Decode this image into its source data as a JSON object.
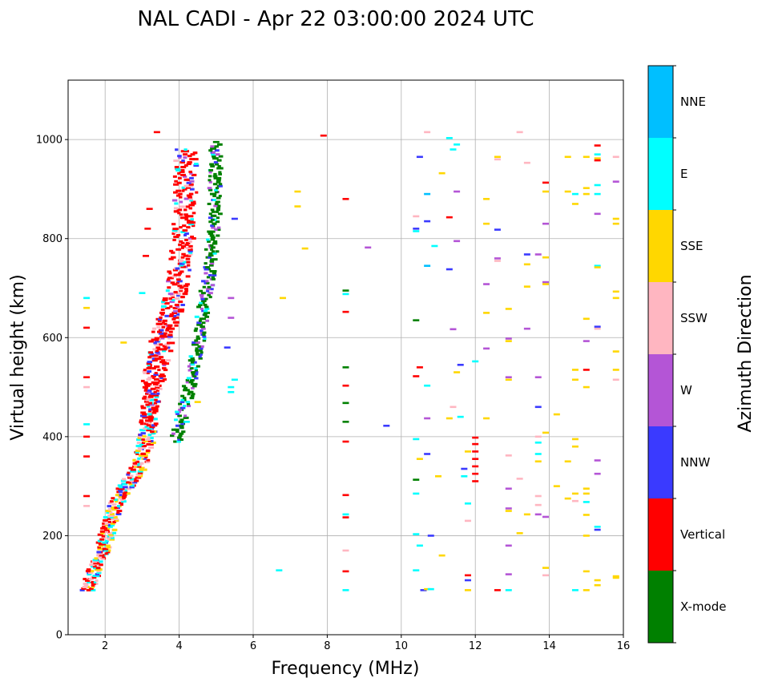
{
  "chart_data": {
    "type": "scatter",
    "title": "NAL CADI - Apr 22 03:00:00 2024 UTC",
    "xlabel": "Frequency (MHz)",
    "ylabel": "Virtual height (km)",
    "xlim": [
      1,
      16
    ],
    "ylim": [
      0,
      1120
    ],
    "xticks": [
      2,
      4,
      6,
      8,
      10,
      12,
      14,
      16
    ],
    "yticks": [
      0,
      200,
      400,
      600,
      800,
      1000
    ],
    "grid": true,
    "colorbar": {
      "title": "Azimuth Direction",
      "categories": [
        {
          "name": "X-mode",
          "color": "#008000"
        },
        {
          "name": "Vertical",
          "color": "#ff0000"
        },
        {
          "name": "NNW",
          "color": "#3a3aff"
        },
        {
          "name": "W",
          "color": "#b455d6"
        },
        {
          "name": "SSW",
          "color": "#ffb6c1"
        },
        {
          "name": "SSE",
          "color": "#ffd700"
        },
        {
          "name": "E",
          "color": "#00ffff"
        },
        {
          "name": "NNE",
          "color": "#00bfff"
        }
      ]
    },
    "dense_trace": {
      "description": "main ionogram trace",
      "mix": [
        "Vertical",
        "SSW",
        "E",
        "SSE",
        "NNW"
      ],
      "path": [
        [
          1.5,
          90
        ],
        [
          1.7,
          125
        ],
        [
          1.9,
          165
        ],
        [
          2.1,
          215
        ],
        [
          2.3,
          265
        ],
        [
          2.6,
          305
        ],
        [
          2.9,
          335
        ],
        [
          3.1,
          380
        ],
        [
          3.2,
          450
        ],
        [
          3.35,
          530
        ],
        [
          3.55,
          600
        ],
        [
          3.8,
          660
        ],
        [
          4.0,
          720
        ],
        [
          4.15,
          830
        ],
        [
          4.2,
          980
        ]
      ]
    },
    "x_mode_trace": {
      "description": "x-mode trace",
      "path": [
        [
          3.9,
          390
        ],
        [
          4.2,
          480
        ],
        [
          4.5,
          580
        ],
        [
          4.75,
          700
        ],
        [
          4.95,
          820
        ],
        [
          5.0,
          990
        ]
      ]
    },
    "points": [
      {
        "f": 1.5,
        "h": 680,
        "dir": "E"
      },
      {
        "f": 1.5,
        "h": 660,
        "dir": "SSE"
      },
      {
        "f": 1.5,
        "h": 620,
        "dir": "Vertical"
      },
      {
        "f": 1.5,
        "h": 520,
        "dir": "Vertical"
      },
      {
        "f": 1.5,
        "h": 500,
        "dir": "SSW"
      },
      {
        "f": 1.5,
        "h": 425,
        "dir": "E"
      },
      {
        "f": 1.5,
        "h": 400,
        "dir": "Vertical"
      },
      {
        "f": 1.5,
        "h": 360,
        "dir": "Vertical"
      },
      {
        "f": 1.5,
        "h": 280,
        "dir": "Vertical"
      },
      {
        "f": 1.5,
        "h": 260,
        "dir": "SSW"
      },
      {
        "f": 3.4,
        "h": 1015,
        "dir": "Vertical"
      },
      {
        "f": 3.2,
        "h": 860,
        "dir": "Vertical"
      },
      {
        "f": 3.15,
        "h": 820,
        "dir": "Vertical"
      },
      {
        "f": 3.1,
        "h": 765,
        "dir": "Vertical"
      },
      {
        "f": 3.0,
        "h": 690,
        "dir": "E"
      },
      {
        "f": 2.5,
        "h": 590,
        "dir": "SSE"
      },
      {
        "f": 5.0,
        "h": 995,
        "dir": "X-mode"
      },
      {
        "f": 5.5,
        "h": 840,
        "dir": "NNW"
      },
      {
        "f": 5.4,
        "h": 680,
        "dir": "W"
      },
      {
        "f": 5.4,
        "h": 640,
        "dir": "W"
      },
      {
        "f": 5.3,
        "h": 580,
        "dir": "NNW"
      },
      {
        "f": 5.5,
        "h": 515,
        "dir": "E"
      },
      {
        "f": 5.4,
        "h": 500,
        "dir": "E"
      },
      {
        "f": 5.4,
        "h": 490,
        "dir": "E"
      },
      {
        "f": 4.2,
        "h": 430,
        "dir": "E"
      },
      {
        "f": 4.5,
        "h": 470,
        "dir": "SSE"
      },
      {
        "f": 6.7,
        "h": 130,
        "dir": "E"
      },
      {
        "f": 6.8,
        "h": 680,
        "dir": "SSE"
      },
      {
        "f": 7.2,
        "h": 895,
        "dir": "SSE"
      },
      {
        "f": 7.2,
        "h": 865,
        "dir": "SSE"
      },
      {
        "f": 7.4,
        "h": 780,
        "dir": "SSE"
      },
      {
        "f": 7.9,
        "h": 1008,
        "dir": "Vertical"
      },
      {
        "f": 8.5,
        "h": 880,
        "dir": "Vertical"
      },
      {
        "f": 8.5,
        "h": 695,
        "dir": "X-mode"
      },
      {
        "f": 8.5,
        "h": 688,
        "dir": "E"
      },
      {
        "f": 8.5,
        "h": 652,
        "dir": "Vertical"
      },
      {
        "f": 8.5,
        "h": 540,
        "dir": "X-mode"
      },
      {
        "f": 8.5,
        "h": 503,
        "dir": "Vertical"
      },
      {
        "f": 8.5,
        "h": 468,
        "dir": "X-mode"
      },
      {
        "f": 8.5,
        "h": 430,
        "dir": "X-mode"
      },
      {
        "f": 8.5,
        "h": 390,
        "dir": "Vertical"
      },
      {
        "f": 8.5,
        "h": 282,
        "dir": "Vertical"
      },
      {
        "f": 8.5,
        "h": 243,
        "dir": "E"
      },
      {
        "f": 8.5,
        "h": 237,
        "dir": "Vertical"
      },
      {
        "f": 8.5,
        "h": 170,
        "dir": "SSW"
      },
      {
        "f": 8.5,
        "h": 128,
        "dir": "Vertical"
      },
      {
        "f": 8.5,
        "h": 90,
        "dir": "E"
      },
      {
        "f": 9.1,
        "h": 782,
        "dir": "W"
      },
      {
        "f": 9.6,
        "h": 422,
        "dir": "NNW"
      },
      {
        "f": 10.4,
        "h": 820,
        "dir": "NNW"
      },
      {
        "f": 10.4,
        "h": 815,
        "dir": "E"
      },
      {
        "f": 10.4,
        "h": 845,
        "dir": "SSW"
      },
      {
        "f": 10.4,
        "h": 635,
        "dir": "X-mode"
      },
      {
        "f": 10.4,
        "h": 522,
        "dir": "Vertical"
      },
      {
        "f": 10.4,
        "h": 395,
        "dir": "E"
      },
      {
        "f": 10.4,
        "h": 313,
        "dir": "X-mode"
      },
      {
        "f": 10.4,
        "h": 285,
        "dir": "E"
      },
      {
        "f": 10.4,
        "h": 203,
        "dir": "E"
      },
      {
        "f": 10.4,
        "h": 130,
        "dir": "E"
      },
      {
        "f": 10.5,
        "h": 965,
        "dir": "NNW"
      },
      {
        "f": 10.5,
        "h": 540,
        "dir": "Vertical"
      },
      {
        "f": 10.5,
        "h": 355,
        "dir": "SSE"
      },
      {
        "f": 10.5,
        "h": 180,
        "dir": "E"
      },
      {
        "f": 10.6,
        "h": 90,
        "dir": "NNW"
      },
      {
        "f": 10.7,
        "h": 1015,
        "dir": "SSW"
      },
      {
        "f": 10.7,
        "h": 890,
        "dir": "NNE"
      },
      {
        "f": 10.7,
        "h": 835,
        "dir": "NNW"
      },
      {
        "f": 10.7,
        "h": 745,
        "dir": "NNE"
      },
      {
        "f": 10.7,
        "h": 503,
        "dir": "E"
      },
      {
        "f": 10.7,
        "h": 437,
        "dir": "W"
      },
      {
        "f": 10.7,
        "h": 365,
        "dir": "NNW"
      },
      {
        "f": 10.7,
        "h": 92,
        "dir": "SSE"
      },
      {
        "f": 10.8,
        "h": 200,
        "dir": "NNW"
      },
      {
        "f": 10.8,
        "h": 92,
        "dir": "E"
      },
      {
        "f": 10.9,
        "h": 785,
        "dir": "E"
      },
      {
        "f": 11.0,
        "h": 320,
        "dir": "SSE"
      },
      {
        "f": 11.1,
        "h": 932,
        "dir": "SSE"
      },
      {
        "f": 11.1,
        "h": 160,
        "dir": "SSE"
      },
      {
        "f": 11.3,
        "h": 1003,
        "dir": "E"
      },
      {
        "f": 11.3,
        "h": 843,
        "dir": "Vertical"
      },
      {
        "f": 11.3,
        "h": 738,
        "dir": "NNW"
      },
      {
        "f": 11.3,
        "h": 437,
        "dir": "SSE"
      },
      {
        "f": 11.4,
        "h": 980,
        "dir": "E"
      },
      {
        "f": 11.4,
        "h": 617,
        "dir": "W"
      },
      {
        "f": 11.4,
        "h": 460,
        "dir": "SSW"
      },
      {
        "f": 11.5,
        "h": 990,
        "dir": "E"
      },
      {
        "f": 11.5,
        "h": 895,
        "dir": "W"
      },
      {
        "f": 11.5,
        "h": 795,
        "dir": "W"
      },
      {
        "f": 11.5,
        "h": 530,
        "dir": "SSE"
      },
      {
        "f": 11.6,
        "h": 545,
        "dir": "NNW"
      },
      {
        "f": 11.6,
        "h": 440,
        "dir": "E"
      },
      {
        "f": 11.7,
        "h": 335,
        "dir": "NNW"
      },
      {
        "f": 11.7,
        "h": 320,
        "dir": "E"
      },
      {
        "f": 11.8,
        "h": 370,
        "dir": "SSE"
      },
      {
        "f": 11.8,
        "h": 265,
        "dir": "E"
      },
      {
        "f": 11.8,
        "h": 230,
        "dir": "SSW"
      },
      {
        "f": 11.8,
        "h": 120,
        "dir": "Vertical"
      },
      {
        "f": 11.8,
        "h": 110,
        "dir": "NNW"
      },
      {
        "f": 11.8,
        "h": 90,
        "dir": "SSE"
      },
      {
        "f": 12.0,
        "h": 552,
        "dir": "E"
      },
      {
        "f": 12.0,
        "h": 398,
        "dir": "Vertical"
      },
      {
        "f": 12.0,
        "h": 385,
        "dir": "Vertical"
      },
      {
        "f": 12.0,
        "h": 370,
        "dir": "Vertical"
      },
      {
        "f": 12.0,
        "h": 355,
        "dir": "Vertical"
      },
      {
        "f": 12.0,
        "h": 340,
        "dir": "Vertical"
      },
      {
        "f": 12.0,
        "h": 325,
        "dir": "Vertical"
      },
      {
        "f": 12.0,
        "h": 310,
        "dir": "Vertical"
      },
      {
        "f": 12.3,
        "h": 880,
        "dir": "SSE"
      },
      {
        "f": 12.3,
        "h": 830,
        "dir": "SSE"
      },
      {
        "f": 12.3,
        "h": 708,
        "dir": "W"
      },
      {
        "f": 12.3,
        "h": 650,
        "dir": "SSE"
      },
      {
        "f": 12.3,
        "h": 578,
        "dir": "W"
      },
      {
        "f": 12.3,
        "h": 437,
        "dir": "SSE"
      },
      {
        "f": 12.6,
        "h": 965,
        "dir": "SSE"
      },
      {
        "f": 12.6,
        "h": 960,
        "dir": "SSW"
      },
      {
        "f": 12.6,
        "h": 818,
        "dir": "NNW"
      },
      {
        "f": 12.6,
        "h": 760,
        "dir": "W"
      },
      {
        "f": 12.6,
        "h": 755,
        "dir": "SSW"
      },
      {
        "f": 12.6,
        "h": 90,
        "dir": "Vertical"
      },
      {
        "f": 12.9,
        "h": 658,
        "dir": "SSE"
      },
      {
        "f": 12.9,
        "h": 598,
        "dir": "W"
      },
      {
        "f": 12.9,
        "h": 593,
        "dir": "SSE"
      },
      {
        "f": 12.9,
        "h": 520,
        "dir": "W"
      },
      {
        "f": 12.9,
        "h": 515,
        "dir": "SSE"
      },
      {
        "f": 12.9,
        "h": 362,
        "dir": "SSW"
      },
      {
        "f": 12.9,
        "h": 295,
        "dir": "W"
      },
      {
        "f": 12.9,
        "h": 255,
        "dir": "W"
      },
      {
        "f": 12.9,
        "h": 250,
        "dir": "SSE"
      },
      {
        "f": 12.9,
        "h": 180,
        "dir": "W"
      },
      {
        "f": 12.9,
        "h": 122,
        "dir": "W"
      },
      {
        "f": 12.9,
        "h": 90,
        "dir": "E"
      },
      {
        "f": 13.2,
        "h": 1015,
        "dir": "SSW"
      },
      {
        "f": 13.2,
        "h": 315,
        "dir": "SSW"
      },
      {
        "f": 13.2,
        "h": 205,
        "dir": "SSE"
      },
      {
        "f": 13.4,
        "h": 953,
        "dir": "SSW"
      },
      {
        "f": 13.4,
        "h": 768,
        "dir": "NNW"
      },
      {
        "f": 13.4,
        "h": 748,
        "dir": "SSE"
      },
      {
        "f": 13.4,
        "h": 703,
        "dir": "SSE"
      },
      {
        "f": 13.4,
        "h": 618,
        "dir": "W"
      },
      {
        "f": 13.4,
        "h": 243,
        "dir": "SSE"
      },
      {
        "f": 13.7,
        "h": 768,
        "dir": "W"
      },
      {
        "f": 13.7,
        "h": 520,
        "dir": "W"
      },
      {
        "f": 13.7,
        "h": 460,
        "dir": "NNW"
      },
      {
        "f": 13.7,
        "h": 400,
        "dir": "SSW"
      },
      {
        "f": 13.7,
        "h": 388,
        "dir": "E"
      },
      {
        "f": 13.7,
        "h": 365,
        "dir": "E"
      },
      {
        "f": 13.7,
        "h": 350,
        "dir": "SSE"
      },
      {
        "f": 13.7,
        "h": 280,
        "dir": "SSW"
      },
      {
        "f": 13.7,
        "h": 262,
        "dir": "SSW"
      },
      {
        "f": 13.7,
        "h": 243,
        "dir": "W"
      },
      {
        "f": 13.9,
        "h": 913,
        "dir": "Vertical"
      },
      {
        "f": 13.9,
        "h": 895,
        "dir": "SSE"
      },
      {
        "f": 13.9,
        "h": 830,
        "dir": "W"
      },
      {
        "f": 13.9,
        "h": 762,
        "dir": "SSE"
      },
      {
        "f": 13.9,
        "h": 712,
        "dir": "W"
      },
      {
        "f": 13.9,
        "h": 708,
        "dir": "SSE"
      },
      {
        "f": 13.9,
        "h": 408,
        "dir": "SSE"
      },
      {
        "f": 13.9,
        "h": 238,
        "dir": "W"
      },
      {
        "f": 13.9,
        "h": 135,
        "dir": "SSE"
      },
      {
        "f": 13.9,
        "h": 120,
        "dir": "SSW"
      },
      {
        "f": 14.2,
        "h": 445,
        "dir": "SSE"
      },
      {
        "f": 14.2,
        "h": 300,
        "dir": "SSE"
      },
      {
        "f": 14.5,
        "h": 965,
        "dir": "SSE"
      },
      {
        "f": 14.5,
        "h": 895,
        "dir": "SSE"
      },
      {
        "f": 14.5,
        "h": 350,
        "dir": "SSE"
      },
      {
        "f": 14.5,
        "h": 275,
        "dir": "SSE"
      },
      {
        "f": 14.7,
        "h": 890,
        "dir": "E"
      },
      {
        "f": 14.7,
        "h": 870,
        "dir": "SSE"
      },
      {
        "f": 14.7,
        "h": 535,
        "dir": "SSE"
      },
      {
        "f": 14.7,
        "h": 515,
        "dir": "SSE"
      },
      {
        "f": 14.7,
        "h": 395,
        "dir": "SSE"
      },
      {
        "f": 14.7,
        "h": 380,
        "dir": "SSE"
      },
      {
        "f": 14.7,
        "h": 285,
        "dir": "SSE"
      },
      {
        "f": 14.7,
        "h": 270,
        "dir": "SSW"
      },
      {
        "f": 14.7,
        "h": 90,
        "dir": "E"
      },
      {
        "f": 15.0,
        "h": 965,
        "dir": "SSE"
      },
      {
        "f": 15.0,
        "h": 902,
        "dir": "SSE"
      },
      {
        "f": 15.0,
        "h": 890,
        "dir": "SSE"
      },
      {
        "f": 15.0,
        "h": 638,
        "dir": "SSE"
      },
      {
        "f": 15.0,
        "h": 593,
        "dir": "W"
      },
      {
        "f": 15.0,
        "h": 535,
        "dir": "Vertical"
      },
      {
        "f": 15.0,
        "h": 500,
        "dir": "SSE"
      },
      {
        "f": 15.0,
        "h": 295,
        "dir": "SSE"
      },
      {
        "f": 15.0,
        "h": 285,
        "dir": "SSE"
      },
      {
        "f": 15.0,
        "h": 268,
        "dir": "E"
      },
      {
        "f": 15.0,
        "h": 242,
        "dir": "SSE"
      },
      {
        "f": 15.0,
        "h": 200,
        "dir": "SSE"
      },
      {
        "f": 15.0,
        "h": 128,
        "dir": "SSE"
      },
      {
        "f": 15.0,
        "h": 90,
        "dir": "SSE"
      },
      {
        "f": 15.3,
        "h": 988,
        "dir": "Vertical"
      },
      {
        "f": 15.3,
        "h": 970,
        "dir": "E"
      },
      {
        "f": 15.3,
        "h": 962,
        "dir": "SSE"
      },
      {
        "f": 15.3,
        "h": 958,
        "dir": "Vertical"
      },
      {
        "f": 15.3,
        "h": 908,
        "dir": "E"
      },
      {
        "f": 15.3,
        "h": 890,
        "dir": "E"
      },
      {
        "f": 15.3,
        "h": 850,
        "dir": "W"
      },
      {
        "f": 15.3,
        "h": 745,
        "dir": "E"
      },
      {
        "f": 15.3,
        "h": 742,
        "dir": "SSE"
      },
      {
        "f": 15.3,
        "h": 622,
        "dir": "NNW"
      },
      {
        "f": 15.3,
        "h": 618,
        "dir": "SSW"
      },
      {
        "f": 15.3,
        "h": 352,
        "dir": "W"
      },
      {
        "f": 15.3,
        "h": 325,
        "dir": "W"
      },
      {
        "f": 15.3,
        "h": 218,
        "dir": "E"
      },
      {
        "f": 15.3,
        "h": 212,
        "dir": "NNW"
      },
      {
        "f": 15.3,
        "h": 110,
        "dir": "SSE"
      },
      {
        "f": 15.3,
        "h": 100,
        "dir": "SSE"
      },
      {
        "f": 15.8,
        "h": 965,
        "dir": "SSW"
      },
      {
        "f": 15.8,
        "h": 915,
        "dir": "W"
      },
      {
        "f": 15.8,
        "h": 840,
        "dir": "SSE"
      },
      {
        "f": 15.8,
        "h": 830,
        "dir": "SSE"
      },
      {
        "f": 15.8,
        "h": 693,
        "dir": "SSE"
      },
      {
        "f": 15.8,
        "h": 680,
        "dir": "SSE"
      },
      {
        "f": 15.8,
        "h": 572,
        "dir": "SSE"
      },
      {
        "f": 15.8,
        "h": 535,
        "dir": "SSE"
      },
      {
        "f": 15.8,
        "h": 515,
        "dir": "SSW"
      },
      {
        "f": 15.8,
        "h": 118,
        "dir": "SSE"
      },
      {
        "f": 15.8,
        "h": 115,
        "dir": "SSE"
      }
    ]
  }
}
